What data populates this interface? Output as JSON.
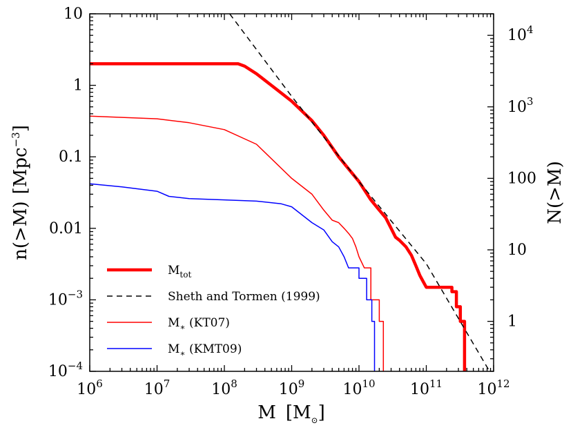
{
  "chart_data": {
    "type": "line",
    "title": "",
    "xlabel": {
      "main": "M",
      "unit_open": "[M",
      "unit_sub": "⊙",
      "unit_close": "]"
    },
    "ylabel_left": {
      "main": "n(>M)",
      "unit_open": "[Mpc",
      "unit_exp": "−3",
      "unit_close": "]"
    },
    "ylabel_right": "N(>M)",
    "x_scale": "log",
    "y_scale": "log",
    "xlim": [
      1000000.0,
      1000000000000.0
    ],
    "ylim_left": [
      0.0001,
      10
    ],
    "ylim_right": [
      0.2,
      20000
    ],
    "grid": false,
    "legend_position": "lower-left",
    "x_ticks": [
      {
        "base": "10",
        "exp": "6"
      },
      {
        "base": "10",
        "exp": "7"
      },
      {
        "base": "10",
        "exp": "8"
      },
      {
        "base": "10",
        "exp": "9"
      },
      {
        "base": "10",
        "exp": "10"
      },
      {
        "base": "10",
        "exp": "11"
      },
      {
        "base": "10",
        "exp": "12"
      }
    ],
    "y_left_ticks": [
      {
        "value": 10,
        "base": "10",
        "exp": ""
      },
      {
        "value": 1,
        "base": "1",
        "exp": ""
      },
      {
        "value": 0.1,
        "base": "0.1",
        "exp": ""
      },
      {
        "value": 0.01,
        "base": "0.01",
        "exp": ""
      },
      {
        "value": 0.001,
        "base": "10",
        "exp": "−3"
      },
      {
        "value": 0.0001,
        "base": "10",
        "exp": "−4"
      }
    ],
    "y_right_ticks": [
      {
        "value": 10000,
        "base": "10",
        "exp": "4"
      },
      {
        "value": 1000,
        "base": "10",
        "exp": "3"
      },
      {
        "value": 100,
        "base": "100",
        "exp": ""
      },
      {
        "value": 10,
        "base": "10",
        "exp": ""
      },
      {
        "value": 1,
        "base": "1",
        "exp": ""
      }
    ],
    "series": [
      {
        "name": "M",
        "name_sub": "tot",
        "color": "#ff0000",
        "width": 4.5,
        "dash": "",
        "x": [
          1000000.0,
          160000000.0,
          200000000.0,
          300000000.0,
          500000000.0,
          1000000000.0,
          2000000000.0,
          3000000000.0,
          5000000000.0,
          10000000000.0,
          15000000000.0,
          20000000000.0,
          25000000000.0,
          30000000000.0,
          35000000000.0,
          40000000000.0,
          50000000000.0,
          60000000000.0,
          70000000000.0,
          80000000000.0,
          90000000000.0,
          100000000000.0,
          240000000000.0,
          240000000000.0,
          280000000000.0,
          280000000000.0,
          320000000000.0,
          320000000000.0,
          370000000000.0,
          370000000000.0
        ],
        "y": [
          2.0,
          2.0,
          1.85,
          1.45,
          1.0,
          0.6,
          0.32,
          0.2,
          0.1,
          0.045,
          0.025,
          0.018,
          0.014,
          0.01,
          0.0075,
          0.0068,
          0.0055,
          0.0042,
          0.003,
          0.0022,
          0.0018,
          0.0015,
          0.0015,
          0.0013,
          0.0013,
          0.0008,
          0.0008,
          0.0005,
          0.0005,
          0.0001
        ]
      },
      {
        "name": "Sheth and Tormen (1999)",
        "name_sub": "",
        "color": "#000000",
        "width": 1.5,
        "dash": "8,6",
        "x": [
          120000000.0,
          1000000000.0,
          10000000000.0,
          100000000000.0,
          1000000000000.0
        ],
        "y": [
          10,
          0.7,
          0.045,
          0.0032,
          8e-05
        ]
      },
      {
        "name": "M",
        "name_sub": "∗",
        "name_suffix": " (KT07)",
        "color": "#ff0000",
        "width": 1.5,
        "dash": "",
        "x": [
          1000000.0,
          10000000.0,
          30000000.0,
          100000000.0,
          300000000.0,
          1000000000.0,
          2000000000.0,
          3000000000.0,
          4000000000.0,
          5000000000.0,
          6000000000.0,
          7000000000.0,
          8000000000.0,
          9000000000.0,
          10000000000.0,
          12000000000.0,
          15000000000.0,
          15000000000.0,
          20000000000.0,
          20000000000.0,
          23000000000.0,
          23000000000.0
        ],
        "y": [
          0.37,
          0.34,
          0.3,
          0.24,
          0.15,
          0.05,
          0.03,
          0.018,
          0.013,
          0.012,
          0.01,
          0.0085,
          0.0072,
          0.0055,
          0.004,
          0.0028,
          0.0028,
          0.001,
          0.001,
          0.0005,
          0.0005,
          0.0001
        ]
      },
      {
        "name": "M",
        "name_sub": "∗",
        "name_suffix": " (KMT09)",
        "color": "#0000ff",
        "width": 1.5,
        "dash": "",
        "x": [
          1000000.0,
          3000000.0,
          10000000.0,
          15000000.0,
          30000000.0,
          100000000.0,
          300000000.0,
          700000000.0,
          1000000000.0,
          2000000000.0,
          3000000000.0,
          4000000000.0,
          5000000000.0,
          6000000000.0,
          7000000000.0,
          10000000000.0,
          10000000000.0,
          13000000000.0,
          13000000000.0,
          15500000000.0,
          15500000000.0,
          17000000000.0,
          17000000000.0
        ],
        "y": [
          0.042,
          0.038,
          0.033,
          0.028,
          0.026,
          0.025,
          0.024,
          0.022,
          0.02,
          0.012,
          0.0095,
          0.0065,
          0.0055,
          0.004,
          0.0028,
          0.0028,
          0.002,
          0.002,
          0.001,
          0.001,
          0.0005,
          0.0005,
          0.0001
        ]
      }
    ]
  }
}
